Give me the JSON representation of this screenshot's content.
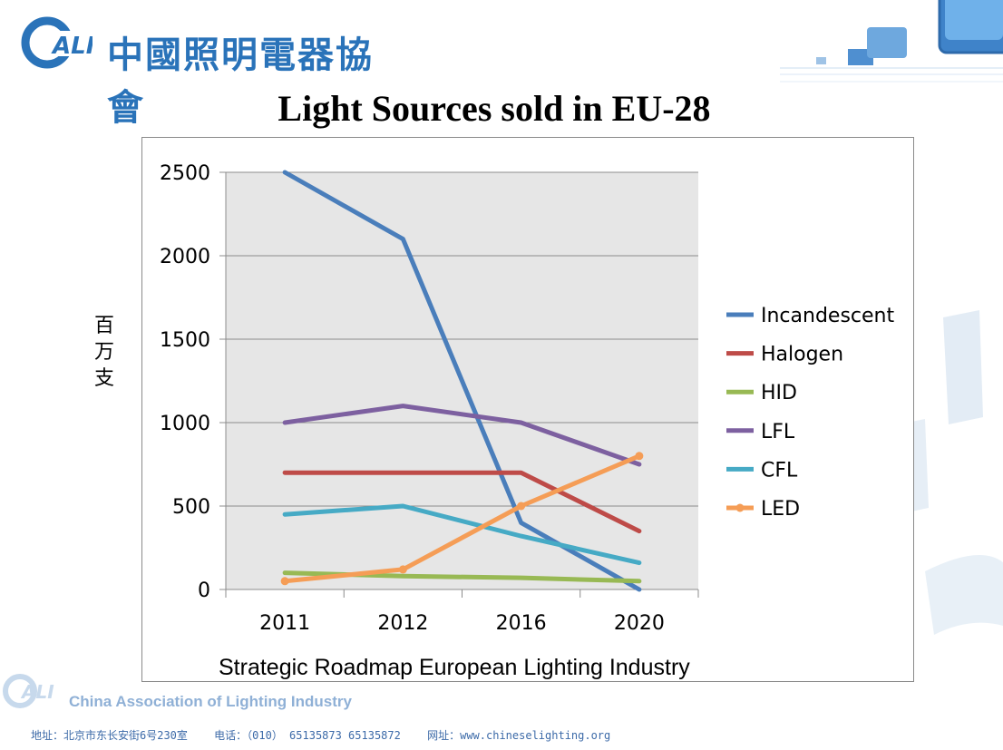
{
  "header": {
    "org_name_cn": "中國照明電器協會",
    "logo_mark": "ALI"
  },
  "slide_title": "Light Sources sold in EU-28",
  "y_axis_label": "百万支",
  "source_note": "Strategic Roadmap European Lighting Industry",
  "footer": {
    "association_en": "China Association of Lighting Industry",
    "address": "地址：北京市东长安街6号230室",
    "phone": "电话：（010） 65135873 65135872",
    "website": "网址：www.chineselighting.org"
  },
  "chart_data": {
    "type": "line",
    "title": "Light Sources sold in EU-28",
    "xlabel": "",
    "ylabel": "百万支",
    "categories": [
      "2011",
      "2012",
      "2016",
      "2020"
    ],
    "ylim": [
      0,
      2500
    ],
    "yticks": [
      0,
      500,
      1000,
      1500,
      2000,
      2500
    ],
    "grid": true,
    "legend_position": "right",
    "series": [
      {
        "name": "Incandescent",
        "color": "#4a7ebb",
        "markers": false,
        "values": [
          2500,
          2100,
          400,
          0
        ]
      },
      {
        "name": "Halogen",
        "color": "#be4b48",
        "markers": false,
        "values": [
          700,
          700,
          700,
          350
        ]
      },
      {
        "name": "HID",
        "color": "#98b954",
        "markers": false,
        "values": [
          100,
          80,
          70,
          50
        ]
      },
      {
        "name": "LFL",
        "color": "#7d60a0",
        "markers": false,
        "values": [
          1000,
          1100,
          1000,
          750
        ]
      },
      {
        "name": "CFL",
        "color": "#46aac5",
        "markers": false,
        "values": [
          450,
          500,
          320,
          160
        ]
      },
      {
        "name": "LED",
        "color": "#f59d56",
        "markers": true,
        "values": [
          50,
          120,
          500,
          800
        ]
      }
    ]
  }
}
